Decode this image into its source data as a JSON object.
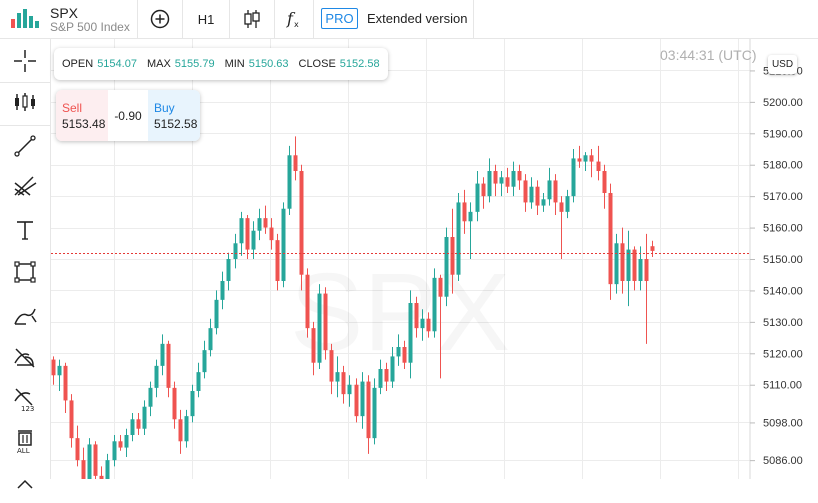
{
  "header": {
    "symbol": "SPX",
    "symbol_name": "S&P 500 Index",
    "timeframe": "H1",
    "pro_badge": "PRO",
    "extended_label": "Extended version"
  },
  "ohlc": {
    "open_label": "OPEN",
    "open": "5154.07",
    "max_label": "MAX",
    "max": "5155.79",
    "min_label": "MIN",
    "min": "5150.63",
    "close_label": "CLOSE",
    "close": "5152.58"
  },
  "trade": {
    "sell_label": "Sell",
    "sell_price": "5153.48",
    "spread": "-0.90",
    "buy_label": "Buy",
    "buy_price": "5152.58"
  },
  "clock": "03:44:31 (UTC)",
  "currency_button": "USD",
  "colors": {
    "up": "#26a69a",
    "down": "#ef5350",
    "current_price_line": "#e53935",
    "accent": "#1e88e5"
  },
  "chart_data": {
    "type": "candlestick",
    "watermark": "SPX",
    "current_price": 5152.0,
    "y_ticks": [
      "5210.00",
      "5200.00",
      "5190.00",
      "5180.00",
      "5170.00",
      "5160.00",
      "5150.00",
      "5140.00",
      "5130.00",
      "5120.00",
      "5110.00",
      "5098.00",
      "5086.00"
    ],
    "ylim": [
      5080,
      5220
    ],
    "grid": true,
    "candles": [
      [
        5118.0,
        5119.0,
        5110.0,
        5113.0
      ],
      [
        5113.0,
        5118.0,
        5108.0,
        5116.0
      ],
      [
        5116.0,
        5117.0,
        5101.0,
        5105.0
      ],
      [
        5105.0,
        5107.0,
        5090.0,
        5093.0
      ],
      [
        5093.0,
        5097.0,
        5084.0,
        5086.0
      ],
      [
        5086.0,
        5090.0,
        5077.0,
        5080.0
      ],
      [
        5080.0,
        5093.0,
        5078.0,
        5091.0
      ],
      [
        5091.0,
        5092.0,
        5078.0,
        5081.0
      ],
      [
        5081.0,
        5084.0,
        5076.0,
        5079.0
      ],
      [
        5079.0,
        5088.0,
        5077.0,
        5086.0
      ],
      [
        5086.0,
        5094.0,
        5084.0,
        5092.0
      ],
      [
        5092.0,
        5094.0,
        5089.0,
        5090.0
      ],
      [
        5090.0,
        5096.0,
        5087.0,
        5094.0
      ],
      [
        5094.0,
        5101.0,
        5092.0,
        5099.0
      ],
      [
        5099.0,
        5101.0,
        5094.0,
        5096.0
      ],
      [
        5096.0,
        5105.0,
        5094.0,
        5103.0
      ],
      [
        5103.0,
        5111.0,
        5100.0,
        5109.0
      ],
      [
        5109.0,
        5118.0,
        5106.0,
        5116.0
      ],
      [
        5116.0,
        5126.0,
        5113.0,
        5123.0
      ],
      [
        5123.0,
        5124.0,
        5106.0,
        5109.0
      ],
      [
        5109.0,
        5111.0,
        5096.0,
        5099.0
      ],
      [
        5099.0,
        5102.0,
        5088.0,
        5092.0
      ],
      [
        5092.0,
        5102.0,
        5090.0,
        5100.0
      ],
      [
        5100.0,
        5110.0,
        5098.0,
        5108.0
      ],
      [
        5108.0,
        5117.0,
        5106.0,
        5114.0
      ],
      [
        5114.0,
        5124.0,
        5112.0,
        5121.0
      ],
      [
        5121.0,
        5131.0,
        5119.0,
        5128.0
      ],
      [
        5128.0,
        5140.0,
        5126.0,
        5137.0
      ],
      [
        5137.0,
        5146.0,
        5134.0,
        5143.0
      ],
      [
        5143.0,
        5152.0,
        5140.0,
        5150.0
      ],
      [
        5150.0,
        5158.0,
        5147.0,
        5155.0
      ],
      [
        5155.0,
        5165.0,
        5151.0,
        5163.0
      ],
      [
        5163.0,
        5164.0,
        5150.0,
        5153.0
      ],
      [
        5153.0,
        5162.0,
        5150.0,
        5159.0
      ],
      [
        5159.0,
        5166.0,
        5156.0,
        5163.0
      ],
      [
        5163.0,
        5167.0,
        5158.0,
        5160.0
      ],
      [
        5160.0,
        5163.0,
        5153.0,
        5156.0
      ],
      [
        5156.0,
        5158.0,
        5140.0,
        5143.0
      ],
      [
        5143.0,
        5168.0,
        5141.0,
        5166.0
      ],
      [
        5166.0,
        5186.0,
        5164.0,
        5183.0
      ],
      [
        5183.0,
        5189.0,
        5175.0,
        5178.0
      ],
      [
        5178.0,
        5180.0,
        5140.0,
        5145.0
      ],
      [
        5145.0,
        5147.0,
        5125.0,
        5128.0
      ],
      [
        5128.0,
        5130.0,
        5113.0,
        5117.0
      ],
      [
        5117.0,
        5142.0,
        5115.0,
        5139.0
      ],
      [
        5139.0,
        5141.0,
        5118.0,
        5121.0
      ],
      [
        5121.0,
        5123.0,
        5107.0,
        5111.0
      ],
      [
        5111.0,
        5119.0,
        5106.0,
        5114.0
      ],
      [
        5114.0,
        5116.0,
        5104.0,
        5107.0
      ],
      [
        5107.0,
        5113.0,
        5103.0,
        5110.0
      ],
      [
        5110.0,
        5112.0,
        5098.0,
        5100.0
      ],
      [
        5100.0,
        5114.0,
        5096.0,
        5111.0
      ],
      [
        5111.0,
        5113.0,
        5088.0,
        5093.0
      ],
      [
        5093.0,
        5112.0,
        5091.0,
        5109.0
      ],
      [
        5109.0,
        5118.0,
        5107.0,
        5115.0
      ],
      [
        5115.0,
        5117.0,
        5108.0,
        5111.0
      ],
      [
        5111.0,
        5122.0,
        5109.0,
        5119.0
      ],
      [
        5119.0,
        5126.0,
        5116.0,
        5122.0
      ],
      [
        5122.0,
        5124.0,
        5115.0,
        5117.0
      ],
      [
        5117.0,
        5140.0,
        5112.0,
        5136.0
      ],
      [
        5136.0,
        5138.0,
        5125.0,
        5128.0
      ],
      [
        5128.0,
        5134.0,
        5124.0,
        5131.0
      ],
      [
        5131.0,
        5133.0,
        5125.0,
        5127.0
      ],
      [
        5127.0,
        5147.0,
        5125.0,
        5144.0
      ],
      [
        5144.0,
        5145.0,
        5112.0,
        5138.0
      ],
      [
        5138.0,
        5160.0,
        5135.0,
        5157.0
      ],
      [
        5157.0,
        5166.0,
        5139.0,
        5145.0
      ],
      [
        5145.0,
        5171.0,
        5143.0,
        5168.0
      ],
      [
        5168.0,
        5172.0,
        5158.0,
        5162.0
      ],
      [
        5162.0,
        5168.0,
        5150.0,
        5165.0
      ],
      [
        5165.0,
        5178.0,
        5162.0,
        5174.0
      ],
      [
        5174.0,
        5176.0,
        5166.0,
        5170.0
      ],
      [
        5170.0,
        5182.0,
        5168.0,
        5178.0
      ],
      [
        5178.0,
        5180.0,
        5170.0,
        5174.0
      ],
      [
        5174.0,
        5178.0,
        5170.0,
        5176.0
      ],
      [
        5176.0,
        5179.0,
        5171.0,
        5173.0
      ],
      [
        5173.0,
        5181.0,
        5170.0,
        5178.0
      ],
      [
        5178.0,
        5180.0,
        5172.0,
        5175.0
      ],
      [
        5175.0,
        5177.0,
        5165.0,
        5168.0
      ],
      [
        5168.0,
        5176.0,
        5166.0,
        5173.0
      ],
      [
        5173.0,
        5175.0,
        5164.0,
        5167.0
      ],
      [
        5167.0,
        5171.0,
        5165.0,
        5169.0
      ],
      [
        5169.0,
        5179.0,
        5167.0,
        5175.0
      ],
      [
        5175.0,
        5177.0,
        5164.0,
        5168.0
      ],
      [
        5168.0,
        5170.0,
        5150.0,
        5165.0
      ],
      [
        5165.0,
        5172.0,
        5163.0,
        5170.0
      ],
      [
        5170.0,
        5185.0,
        5168.0,
        5182.0
      ],
      [
        5182.0,
        5186.0,
        5179.0,
        5181.0
      ],
      [
        5181.0,
        5184.0,
        5178.0,
        5183.0
      ],
      [
        5183.0,
        5185.0,
        5176.0,
        5181.0
      ],
      [
        5181.0,
        5186.0,
        5175.0,
        5178.0
      ],
      [
        5178.0,
        5180.0,
        5166.0,
        5171.0
      ],
      [
        5171.0,
        5174.0,
        5137.0,
        5142.0
      ],
      [
        5142.0,
        5158.0,
        5139.0,
        5155.0
      ],
      [
        5155.0,
        5160.0,
        5139.0,
        5143.0
      ],
      [
        5143.0,
        5159.0,
        5135.0,
        5153.0
      ],
      [
        5153.0,
        5154.0,
        5140.0,
        5143.0
      ],
      [
        5143.0,
        5154.0,
        5140.0,
        5150.0
      ],
      [
        5150.0,
        5158.0,
        5123.0,
        5143.0
      ],
      [
        5154.07,
        5155.79,
        5150.63,
        5152.58
      ]
    ]
  }
}
